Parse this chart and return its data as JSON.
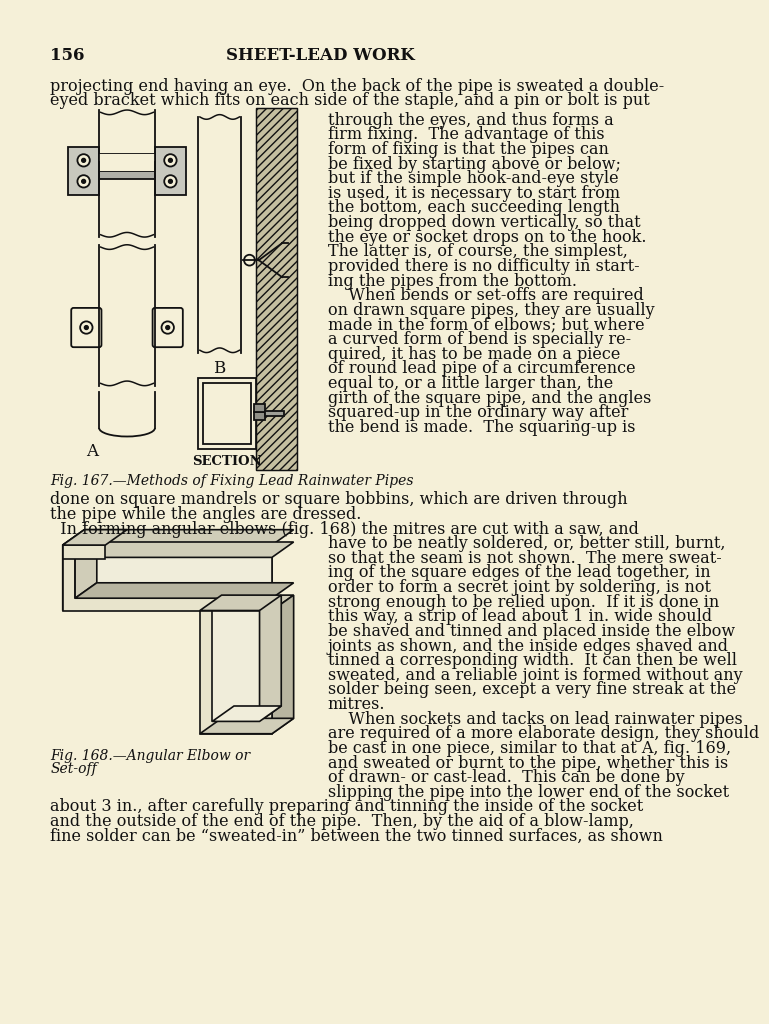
{
  "bg_color": "#f5f0d8",
  "text_color": "#111111",
  "page_number": "156",
  "header_title": "SHEET-LEAD WORK",
  "fig167_caption": "Fig. 167.—Methods of Fixing Lead Rainwater Pipes",
  "fig168_caption_line1": "Fig. 168.—Angular Elbow or",
  "fig168_caption_line2": "Set-off",
  "line1": "projecting end having an eye.  On the back of the pipe is sweated a double-",
  "line2": "eyed bracket which fits on each side of the staple, and a pin or bolt is put",
  "right_col_lines": [
    "through the eyes, and thus forms a",
    "firm fixing.  The advantage of this",
    "form of fixing is that the pipes can",
    "be fixed by starting above or below;",
    "but if the simple hook-and-eye style",
    "is used, it is necessary to start from",
    "the bottom, each succeeding length",
    "being dropped down vertically, so that",
    "the eye or socket drops on to the hook.",
    "The latter is, of course, the simplest,",
    "provided there is no difficulty in start-",
    "ing the pipes from the bottom.",
    "    When bends or set-offs are required",
    "on drawn square pipes, they are usually",
    "made in the form of elbows; but where",
    "a curved form of bend is specially re-",
    "quired, it has to be made on a piece",
    "of round lead pipe of a circumference",
    "equal to, or a little larger than, the",
    "girth of the square pipe, and the angles",
    "squared-up in the ordinary way after",
    "the bend is made.  The squaring-up is"
  ],
  "full_lines_1": [
    "done on square mandrels or square bobbins, which are driven through",
    "the pipe while the angles are dressed."
  ],
  "full_line_3": "  In forming angular elbows (fig. 168) the mitres are cut with a saw, and",
  "right_col2_lines": [
    "have to be neatly soldered, or, better still, burnt,",
    "so that the seam is not shown.  The mere sweat-",
    "ing of the square edges of the lead together, in",
    "order to form a secret joint by soldering, is not",
    "strong enough to be relied upon.  If it is done in",
    "this way, a strip of lead about 1 in. wide should",
    "be shaved and tinned and placed inside the elbow",
    "joints as shown, and the inside edges shaved and",
    "tinned a corresponding width.  It can then be well",
    "sweated, and a reliable joint is formed without any",
    "solder being seen, except a very fine streak at the",
    "mitres.",
    "    When sockets and tacks on lead rainwater pipes",
    "are required of a more elaborate design, they should",
    "be cast in one piece, similar to that at A, fig. 169,",
    "and sweated or burnt to the pipe, whether this is",
    "of drawn- or cast-lead.  This can be done by",
    "slipping the pipe into the lower end of the socket"
  ],
  "full_lines_end": [
    "about 3 in., after carefully preparing and tinning the inside of the socket",
    "and the outside of the end of the pipe.  Then, by the aid of a blow-lamp,",
    "fine solder can be “sweated-in” between the two tinned surfaces, as shown"
  ],
  "body_font_size": 11.5,
  "caption_font_size": 10.0,
  "header_font_size": 12.0
}
